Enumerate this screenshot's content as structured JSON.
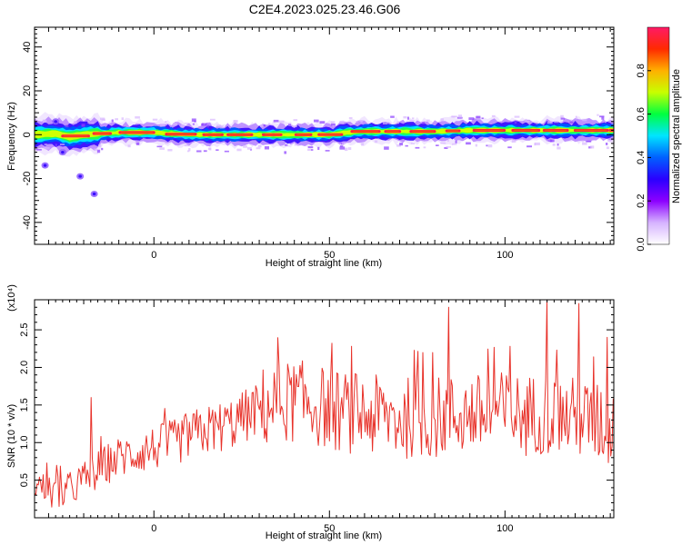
{
  "title": "C2E4.2023.025.23.46.G06",
  "colors": {
    "axis": "#000000",
    "snr_line": "#e8322a",
    "spectrogram_background": "#ffffff",
    "colormap": [
      "#ffffff",
      "#d6b3ff",
      "#8c00ff",
      "#2a00ff",
      "#0060ff",
      "#00e5ff",
      "#00ff40",
      "#c8ff00",
      "#ffb000",
      "#ff2a00",
      "#ff1a66"
    ]
  },
  "chart_data": [
    {
      "id": "spectrogram",
      "type": "heatmap",
      "title": "",
      "xlabel": "Height of straight line (km)",
      "ylabel": "Frequency (Hz)",
      "xlim": [
        -34,
        131
      ],
      "ylim": [
        -50,
        49
      ],
      "xticks": [
        "0",
        "50",
        "100"
      ],
      "yticks": [
        "-40",
        "-20",
        "0",
        "20",
        "40"
      ],
      "ridge": {
        "description_units": "Hz",
        "x": [
          -34,
          -28,
          -24,
          -20,
          -15,
          -10,
          0,
          10,
          20,
          30,
          40,
          50,
          55,
          60,
          70,
          80,
          90,
          100,
          110,
          120,
          131
        ],
        "y": [
          0,
          0.5,
          -1,
          0,
          0.5,
          1,
          1,
          0,
          0,
          0,
          0,
          0,
          1,
          1.5,
          1.5,
          1.5,
          2,
          2,
          2,
          2,
          2
        ]
      },
      "scatter_points": [
        {
          "x": -26,
          "y": -8
        },
        {
          "x": -28,
          "y": 6
        },
        {
          "x": -17,
          "y": -27
        },
        {
          "x": -31,
          "y": -14
        },
        {
          "x": -21,
          "y": -19
        }
      ],
      "colorbar": {
        "label": "Normalized spectral amplitude",
        "range": [
          0,
          1
        ],
        "ticks": [
          "0.0",
          "0.2",
          "0.4",
          "0.6",
          "0.8"
        ]
      }
    },
    {
      "id": "snr",
      "type": "line",
      "title": "",
      "xlabel": "Height of straight line (km)",
      "ylabel": "SNR (10 * v/v)",
      "multiplier_label": "(x10⁴)",
      "xlim": [
        -34,
        131
      ],
      "ylim": [
        0,
        2.9
      ],
      "xticks": [
        "0",
        "50",
        "100"
      ],
      "yticks": [
        "0.5",
        "1.0",
        "1.5",
        "2.0",
        "2.5"
      ],
      "series": [
        {
          "color": "#e8322a",
          "x": [
            -34,
            -30,
            -26,
            -22,
            -18,
            -14,
            -10,
            -6,
            -2,
            2,
            6,
            10,
            14,
            18,
            22,
            26,
            30,
            34,
            38,
            42,
            46,
            50,
            54,
            58,
            62,
            66,
            70,
            74,
            78,
            82,
            86,
            90,
            94,
            98,
            102,
            106,
            110,
            114,
            118,
            122,
            126,
            131
          ],
          "y": [
            0.45,
            0.35,
            0.3,
            0.45,
            0.55,
            0.7,
            0.8,
            0.85,
            0.9,
            0.95,
            1.0,
            1.1,
            1.15,
            1.2,
            1.25,
            1.35,
            1.45,
            1.5,
            1.55,
            1.55,
            1.5,
            1.45,
            1.4,
            1.4,
            1.35,
            1.35,
            1.3,
            1.35,
            1.3,
            1.35,
            1.35,
            1.4,
            1.35,
            1.4,
            1.4,
            1.35,
            1.4,
            1.35,
            1.35,
            1.3,
            1.25,
            1.2
          ]
        }
      ],
      "peaks": [
        {
          "x": -18,
          "y": 1.6
        },
        {
          "x": 84,
          "y": 2.8
        },
        {
          "x": 112,
          "y": 2.9
        },
        {
          "x": 121,
          "y": 2.85
        },
        {
          "x": 129,
          "y": 2.4
        }
      ]
    }
  ]
}
